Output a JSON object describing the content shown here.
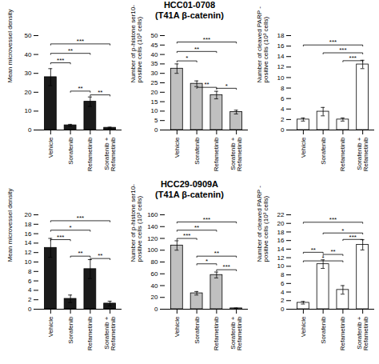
{
  "chart_data": [
    {
      "type": "bar",
      "categories": [
        "Vehicle",
        "Sorafenib",
        "Refametinib",
        "Sorafenib +\nRefametinib"
      ],
      "values": [
        28,
        2.5,
        15,
        1.2
      ],
      "errors": [
        4.5,
        0.5,
        2.5,
        0.3
      ],
      "ylabel": "Mean microvessel density",
      "ylim": [
        0,
        50
      ],
      "yticks": [
        0,
        10,
        20,
        30,
        40,
        50
      ],
      "color": "#1a1a1a",
      "annotations": [
        {
          "text": "***",
          "from": "Vehicle",
          "to": "Sorafenib",
          "y": 35
        },
        {
          "text": "**",
          "from": "Vehicle",
          "to": "Refametinib",
          "y": 40
        },
        {
          "text": "***",
          "from": "Vehicle",
          "to": "Sorafenib +\nRefametinib",
          "y": 45
        },
        {
          "text": "**",
          "from": "Sorafenib",
          "to": "Refametinib",
          "y": 20
        },
        {
          "text": "**",
          "from": "Refametinib",
          "to": "Sorafenib +\nRefametinib",
          "y": 18
        }
      ]
    },
    {
      "type": "bar",
      "title": "HCC01-0708\n(T41A β-catenin)",
      "categories": [
        "Vehicle",
        "Sorafenib",
        "Refametinib",
        "Sorafenib +\nRefametinib"
      ],
      "values": [
        32.5,
        24.5,
        18.5,
        9.5
      ],
      "errors": [
        2.5,
        1.5,
        2.0,
        1.0
      ],
      "ylabel": "Number of p-histone ser10- positive cells (10³ cells)",
      "ylim": [
        0,
        50
      ],
      "yticks": [
        0,
        5,
        10,
        15,
        20,
        25,
        30,
        35,
        40,
        45,
        50
      ],
      "color": "#c0c0c0",
      "annotations": [
        {
          "text": "*",
          "from": "Vehicle",
          "to": "Sorafenib",
          "y": 36
        },
        {
          "text": "**",
          "from": "Vehicle",
          "to": "Refametinib",
          "y": 41
        },
        {
          "text": "***",
          "from": "Vehicle",
          "to": "Sorafenib +\nRefametinib",
          "y": 46
        },
        {
          "text": "**",
          "from": "Sorafenib",
          "to": "Refametinib",
          "y": 22
        },
        {
          "text": "*",
          "from": "Refametinib",
          "to": "Sorafenib +\nRefametinib",
          "y": 21.5
        }
      ]
    },
    {
      "type": "bar",
      "categories": [
        "Vehicle",
        "Sorafenib",
        "Refametinib",
        "Sorafenib +\nRefametinib"
      ],
      "values": [
        2.0,
        3.5,
        2.0,
        12.5
      ],
      "errors": [
        0.3,
        0.8,
        0.3,
        0.8
      ],
      "ylabel": "Number of cleaved PARP - positive cells (10³ cells)",
      "ylim": [
        0,
        18
      ],
      "yticks": [
        0,
        2,
        4,
        6,
        8,
        10,
        12,
        14,
        16,
        18
      ],
      "color": "#ffffff",
      "annotations": [
        {
          "text": "***",
          "from": "Vehicle",
          "to": "Sorafenib +\nRefametinib",
          "y": 16
        },
        {
          "text": "***",
          "from": "Sorafenib",
          "to": "Sorafenib +\nRefametinib",
          "y": 14.5
        },
        {
          "text": "***",
          "from": "Sorafenib +\nRefametinib",
          "to": "Refametinib",
          "y": 13.0
        }
      ]
    },
    {
      "type": "bar",
      "categories": [
        "Vehicle",
        "Sorafenib",
        "Refametinib",
        "Sorafenib +\nRefametinib"
      ],
      "values": [
        13.0,
        2.2,
        8.5,
        1.2
      ],
      "errors": [
        2.0,
        0.8,
        2.0,
        0.5
      ],
      "ylabel": "Mean microvessel density",
      "ylim": [
        0,
        20
      ],
      "yticks": [
        0,
        2,
        4,
        6,
        8,
        10,
        12,
        14,
        16,
        18,
        20
      ],
      "color": "#1a1a1a",
      "annotations": [
        {
          "text": "***",
          "from": "Vehicle",
          "to": "Sorafenib",
          "y": 14.5
        },
        {
          "text": "*",
          "from": "Vehicle",
          "to": "Refametinib",
          "y": 16.5
        },
        {
          "text": "***",
          "from": "Vehicle",
          "to": "Sorafenib +\nRefametinib",
          "y": 18.5
        },
        {
          "text": "**",
          "from": "Sorafenib",
          "to": "Refametinib",
          "y": 11.0
        },
        {
          "text": "**",
          "from": "Refametinib",
          "to": "Sorafenib +\nRefametinib",
          "y": 10.5
        }
      ]
    },
    {
      "type": "bar",
      "title": "HCC29-0909A\n(T41A β-catenin)",
      "categories": [
        "Vehicle",
        "Sorafenib",
        "Refametinib",
        "Sorafenib +\nRefametinib"
      ],
      "values": [
        108,
        27,
        58,
        1.5
      ],
      "errors": [
        8,
        3,
        5,
        0.5
      ],
      "ylabel": "Number of p-histone ser10- positive cells (10³ cells)",
      "ylim": [
        0,
        160
      ],
      "yticks": [
        0,
        20,
        40,
        60,
        80,
        100,
        120,
        140,
        160
      ],
      "color": "#c0c0c0",
      "annotations": [
        {
          "text": "***",
          "from": "Vehicle",
          "to": "Sorafenib",
          "y": 118
        },
        {
          "text": "**",
          "from": "Vehicle",
          "to": "Refametinib",
          "y": 132
        },
        {
          "text": "***",
          "from": "Vehicle",
          "to": "Sorafenib +\nRefametinib",
          "y": 146
        },
        {
          "text": "*",
          "from": "Sorafenib",
          "to": "Refametinib",
          "y": 75
        },
        {
          "text": "**",
          "from": "Sorafenib",
          "to": "Sorafenib +\nRefametinib",
          "y": 88
        },
        {
          "text": "***",
          "from": "Refametinib",
          "to": "Sorafenib +\nRefametinib",
          "y": 65
        }
      ]
    },
    {
      "type": "bar",
      "categories": [
        "Vehicle",
        "Sorafenib",
        "Refametinib",
        "Sorafenib +\nRefametinib"
      ],
      "values": [
        1.5,
        10.5,
        4.5,
        15.0
      ],
      "errors": [
        0.3,
        1.0,
        1.0,
        1.2
      ],
      "ylabel": "Number of cleaved PARP - positive cells (10³ cells)",
      "ylim": [
        0,
        22
      ],
      "yticks": [
        0,
        2,
        4,
        6,
        8,
        10,
        12,
        14,
        16,
        18,
        20,
        22
      ],
      "color": "#ffffff",
      "annotations": [
        {
          "text": "***",
          "from": "Vehicle",
          "to": "Sorafenib +\nRefametinib",
          "y": 20
        },
        {
          "text": "**",
          "from": "Vehicle",
          "to": "Sorafenib",
          "y": 13
        },
        {
          "text": "*",
          "from": "Vehicle",
          "to": "Refametinib",
          "y": 11.0
        },
        {
          "text": "**",
          "from": "Sorafenib",
          "to": "Refametinib",
          "y": 12.5
        },
        {
          "text": "*",
          "from": "Sorafenib",
          "to": "Sorafenib +\nRefametinib",
          "y": 17.5
        },
        {
          "text": "***",
          "from": "Refametinib",
          "to": "Sorafenib +\nRefametinib",
          "y": 16
        }
      ]
    }
  ]
}
